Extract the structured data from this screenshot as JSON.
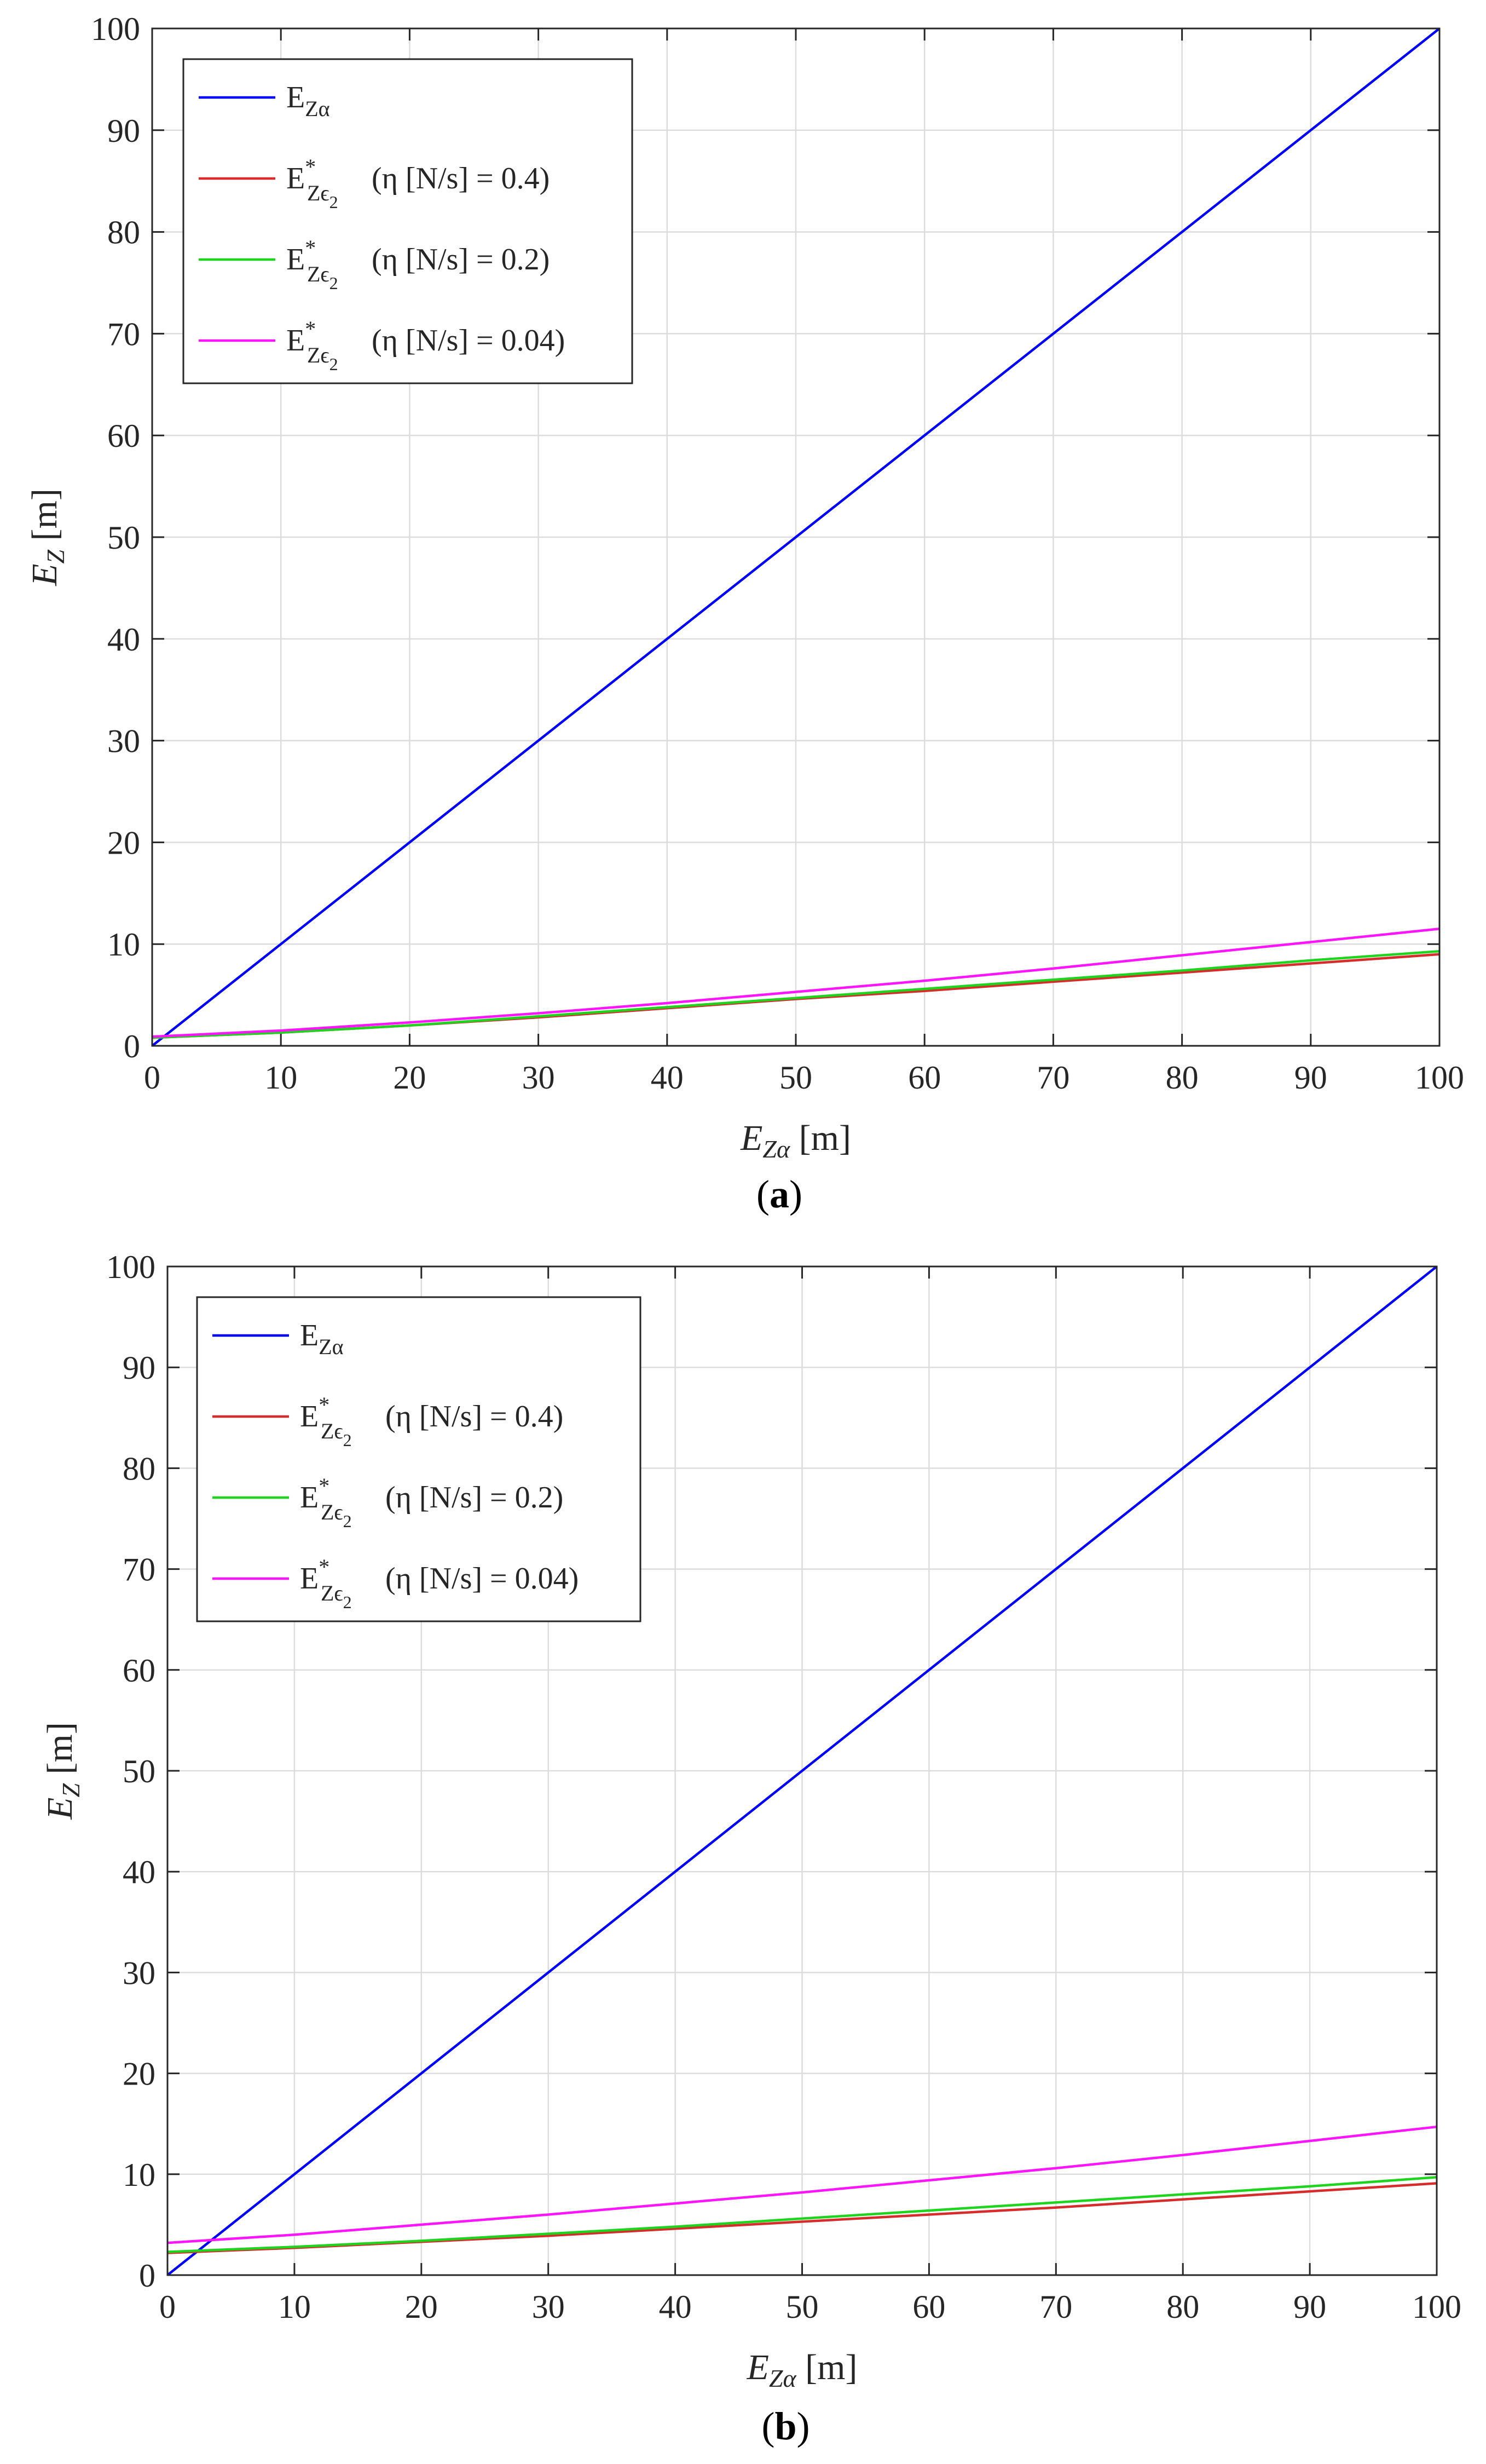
{
  "chart_data": [
    {
      "type": "line",
      "caption": "a",
      "xlabel": "E",
      "xlabel_sub": "Zα",
      "xlabel_unit": "[m]",
      "ylabel": "E",
      "ylabel_sub": "Z",
      "ylabel_unit": "[m]",
      "xlim": [
        0,
        100
      ],
      "ylim": [
        0,
        100
      ],
      "xticks": [
        0,
        10,
        20,
        30,
        40,
        50,
        60,
        70,
        80,
        90,
        100
      ],
      "yticks": [
        0,
        10,
        20,
        30,
        40,
        50,
        60,
        70,
        80,
        90,
        100
      ],
      "grid": true,
      "legend_position": "top-left",
      "series": [
        {
          "base": "E",
          "sub": "Zα",
          "sup": "",
          "sub2": "",
          "param": "",
          "color": "#0000ff",
          "x": [
            0,
            100
          ],
          "y": [
            0,
            100
          ]
        },
        {
          "base": "E",
          "sub": "Zϵ",
          "sup": "*",
          "sub2": "2",
          "param": "(η [N/s] = 0.4)",
          "color": "#d62c2c",
          "x": [
            0,
            10,
            20,
            30,
            40,
            50,
            60,
            70,
            80,
            90,
            100
          ],
          "y": [
            0.8,
            1.3,
            2.0,
            2.8,
            3.7,
            4.6,
            5.4,
            6.3,
            7.2,
            8.1,
            9.0
          ]
        },
        {
          "base": "E",
          "sub": "Zϵ",
          "sup": "*",
          "sub2": "2",
          "param": "(η [N/s] = 0.2)",
          "color": "#1ed41e",
          "x": [
            0,
            10,
            20,
            30,
            40,
            50,
            60,
            70,
            80,
            90,
            100
          ],
          "y": [
            0.8,
            1.3,
            2.0,
            2.9,
            3.8,
            4.7,
            5.6,
            6.5,
            7.4,
            8.4,
            9.3
          ]
        },
        {
          "base": "E",
          "sub": "Zϵ",
          "sup": "*",
          "sub2": "2",
          "param": "(η [N/s] = 0.04)",
          "color": "#ff14ff",
          "x": [
            0,
            10,
            20,
            30,
            40,
            50,
            60,
            70,
            80,
            90,
            100
          ],
          "y": [
            0.9,
            1.5,
            2.3,
            3.2,
            4.2,
            5.3,
            6.4,
            7.6,
            8.9,
            10.2,
            11.5
          ]
        }
      ]
    },
    {
      "type": "line",
      "caption": "b",
      "xlabel": "E",
      "xlabel_sub": "Zα",
      "xlabel_unit": "[m]",
      "ylabel": "E",
      "ylabel_sub": "Z",
      "ylabel_unit": "[m]",
      "xlim": [
        0,
        100
      ],
      "ylim": [
        0,
        100
      ],
      "xticks": [
        0,
        10,
        20,
        30,
        40,
        50,
        60,
        70,
        80,
        90,
        100
      ],
      "yticks": [
        0,
        10,
        20,
        30,
        40,
        50,
        60,
        70,
        80,
        90,
        100
      ],
      "grid": true,
      "legend_position": "top-left",
      "series": [
        {
          "base": "E",
          "sub": "Zα",
          "sup": "",
          "sub2": "",
          "param": "",
          "color": "#0000ff",
          "x": [
            0,
            100
          ],
          "y": [
            0,
            100
          ]
        },
        {
          "base": "E",
          "sub": "Zϵ",
          "sup": "*",
          "sub2": "2",
          "param": "(η [N/s] = 0.4)",
          "color": "#d62c2c",
          "x": [
            0,
            10,
            20,
            30,
            40,
            50,
            60,
            70,
            80,
            90,
            100
          ],
          "y": [
            2.2,
            2.7,
            3.3,
            3.9,
            4.6,
            5.3,
            6.0,
            6.7,
            7.5,
            8.3,
            9.1
          ]
        },
        {
          "base": "E",
          "sub": "Zϵ",
          "sup": "*",
          "sub2": "2",
          "param": "(η [N/s] = 0.2)",
          "color": "#1ed41e",
          "x": [
            0,
            10,
            20,
            30,
            40,
            50,
            60,
            70,
            80,
            90,
            100
          ],
          "y": [
            2.3,
            2.8,
            3.4,
            4.1,
            4.8,
            5.6,
            6.4,
            7.2,
            8.0,
            8.8,
            9.7
          ]
        },
        {
          "base": "E",
          "sub": "Zϵ",
          "sup": "*",
          "sub2": "2",
          "param": "(η [N/s] = 0.04)",
          "color": "#ff14ff",
          "x": [
            0,
            10,
            20,
            30,
            40,
            50,
            60,
            70,
            80,
            90,
            100
          ],
          "y": [
            3.2,
            4.0,
            5.0,
            6.0,
            7.1,
            8.2,
            9.4,
            10.6,
            11.9,
            13.3,
            14.7
          ]
        }
      ]
    }
  ]
}
